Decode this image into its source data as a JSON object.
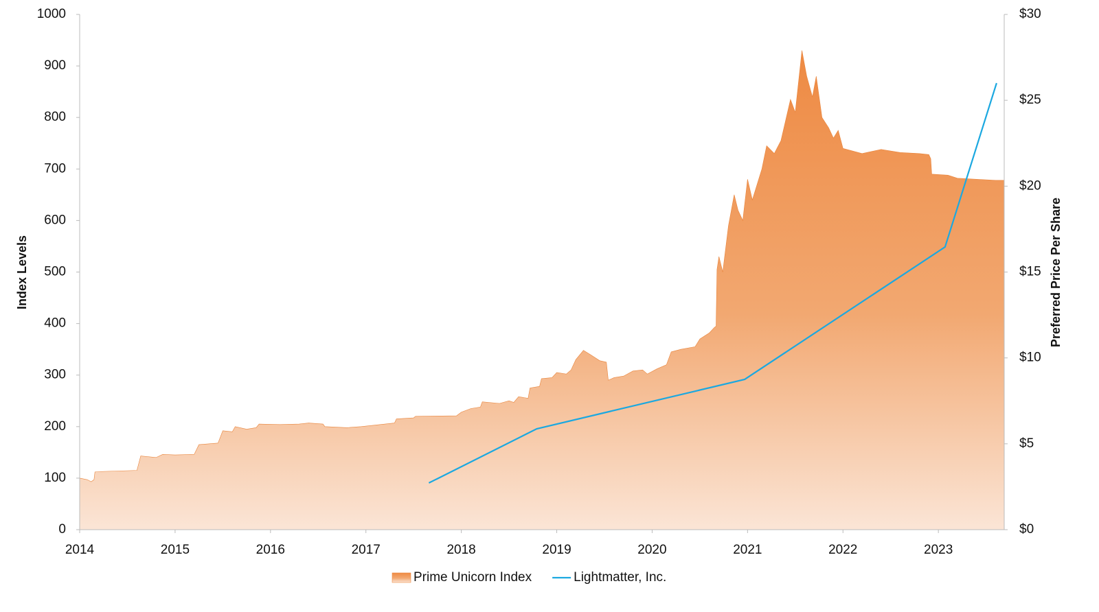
{
  "chart_data": {
    "type": "area",
    "y_label": "Index Levels",
    "y2_label": "Preferred Price Per Share",
    "xlim": [
      2014,
      2023.69
    ],
    "xticks": [
      2014,
      2015,
      2016,
      2017,
      2018,
      2019,
      2020,
      2021,
      2022,
      2023
    ],
    "ylim": [
      0,
      1000
    ],
    "yticks": [
      0,
      100,
      200,
      300,
      400,
      500,
      600,
      700,
      800,
      900,
      1000
    ],
    "y2lim": [
      0,
      30
    ],
    "y2ticks": [
      {
        "value": 0,
        "label": "$0"
      },
      {
        "value": 5,
        "label": "$5"
      },
      {
        "value": 10,
        "label": "$10"
      },
      {
        "value": 15,
        "label": "$15"
      },
      {
        "value": 20,
        "label": "$20"
      },
      {
        "value": 25,
        "label": "$25"
      },
      {
        "value": 30,
        "label": "$30"
      }
    ],
    "legend": "bottom",
    "series": [
      {
        "name": "Prime Unicorn Index",
        "type": "area",
        "color": "#ee8a43",
        "x": [
          2014.0,
          2014.08,
          2014.12,
          2014.15,
          2014.16,
          2014.25,
          2014.6,
          2014.64,
          2014.8,
          2014.87,
          2015.0,
          2015.2,
          2015.25,
          2015.45,
          2015.5,
          2015.6,
          2015.63,
          2015.75,
          2015.85,
          2015.88,
          2016.1,
          2016.3,
          2016.4,
          2016.55,
          2016.57,
          2016.8,
          2016.95,
          2017.1,
          2017.3,
          2017.32,
          2017.5,
          2017.52,
          2017.95,
          2018.0,
          2018.1,
          2018.2,
          2018.22,
          2018.4,
          2018.5,
          2018.55,
          2018.6,
          2018.7,
          2018.72,
          2018.82,
          2018.84,
          2018.95,
          2019.0,
          2019.1,
          2019.15,
          2019.2,
          2019.28,
          2019.35,
          2019.45,
          2019.52,
          2019.54,
          2019.6,
          2019.7,
          2019.8,
          2019.9,
          2019.95,
          2020.05,
          2020.15,
          2020.2,
          2020.3,
          2020.45,
          2020.5,
          2020.6,
          2020.65,
          2020.67,
          2020.68,
          2020.7,
          2020.74,
          2020.8,
          2020.86,
          2020.9,
          2020.95,
          2021.0,
          2021.05,
          2021.1,
          2021.15,
          2021.2,
          2021.28,
          2021.35,
          2021.45,
          2021.5,
          2021.57,
          2021.62,
          2021.68,
          2021.72,
          2021.78,
          2021.85,
          2021.9,
          2021.95,
          2022.0,
          2022.2,
          2022.4,
          2022.6,
          2022.8,
          2022.9,
          2022.92,
          2022.93,
          2023.1,
          2023.2,
          2023.4,
          2023.6,
          2023.69
        ],
        "values": [
          100,
          97,
          93,
          97,
          112,
          113,
          115,
          143,
          140,
          146,
          145,
          146,
          165,
          168,
          192,
          190,
          200,
          195,
          198,
          205,
          204,
          205,
          207,
          205,
          200,
          198,
          200,
          203,
          207,
          215,
          217,
          220,
          221,
          228,
          235,
          238,
          248,
          245,
          250,
          247,
          258,
          255,
          275,
          278,
          293,
          295,
          305,
          302,
          310,
          330,
          348,
          340,
          328,
          325,
          290,
          295,
          298,
          308,
          310,
          302,
          312,
          320,
          345,
          350,
          355,
          370,
          382,
          392,
          395,
          505,
          530,
          500,
          590,
          650,
          620,
          600,
          680,
          640,
          670,
          700,
          745,
          730,
          755,
          835,
          810,
          930,
          880,
          840,
          880,
          800,
          780,
          760,
          775,
          740,
          730,
          738,
          732,
          730,
          728,
          720,
          690,
          688,
          682,
          680,
          678,
          678
        ]
      },
      {
        "name": "Lightmatter, Inc.",
        "type": "line",
        "axis": "y2",
        "color": "#1ba8e0",
        "x": [
          2017.66,
          2018.79,
          2020.97,
          2023.07,
          2023.61
        ],
        "values": [
          2.72,
          5.87,
          8.75,
          16.46,
          26.0
        ]
      }
    ]
  }
}
